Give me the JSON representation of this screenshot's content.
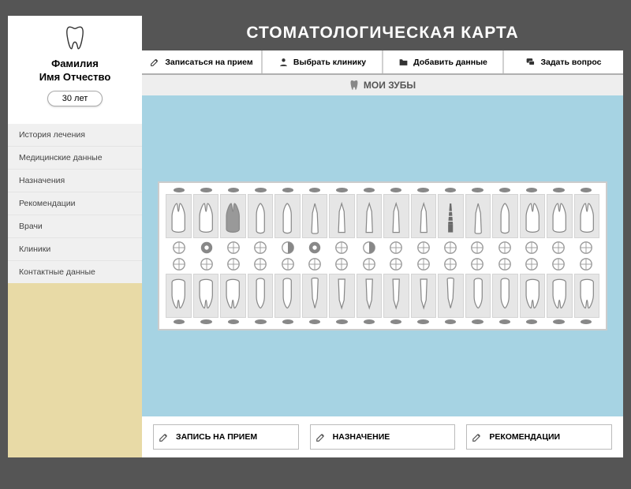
{
  "profile": {
    "name_line1": "Фамилия",
    "name_line2": "Имя Отчество",
    "age": "30 лет"
  },
  "nav": {
    "items": [
      "История лечения",
      "Медицинские данные",
      "Назначения",
      "Рекомендации",
      "Врачи",
      "Клиники",
      "Контактные данные"
    ]
  },
  "title": "СТОМАТОЛОГИЧЕСКАЯ КАРТА",
  "toolbar": {
    "items": [
      {
        "label": "Записаться на прием",
        "icon": "pencil"
      },
      {
        "label": "Выбрать клинику",
        "icon": "user"
      },
      {
        "label": "Добавить данные",
        "icon": "folder"
      },
      {
        "label": "Задать вопрос",
        "icon": "chat"
      }
    ]
  },
  "sub_header": "МОИ ЗУБЫ",
  "chart": {
    "tooth_count": 16,
    "upper_teeth": [
      {
        "type": "molar",
        "shade": "light"
      },
      {
        "type": "molar",
        "shade": "light"
      },
      {
        "type": "molar",
        "shade": "dark"
      },
      {
        "type": "premolar",
        "shade": "light"
      },
      {
        "type": "premolar",
        "shade": "light"
      },
      {
        "type": "canine",
        "shade": "light"
      },
      {
        "type": "incisor",
        "shade": "light"
      },
      {
        "type": "incisor",
        "shade": "light"
      },
      {
        "type": "incisor",
        "shade": "light"
      },
      {
        "type": "incisor",
        "shade": "light"
      },
      {
        "type": "implant",
        "shade": "dark"
      },
      {
        "type": "canine",
        "shade": "light"
      },
      {
        "type": "premolar",
        "shade": "light"
      },
      {
        "type": "molar",
        "shade": "light"
      },
      {
        "type": "molar",
        "shade": "light"
      },
      {
        "type": "molar",
        "shade": "light"
      }
    ],
    "upper_occlusal": [
      "ring",
      "filled",
      "ring",
      "ring",
      "half",
      "filled",
      "ring",
      "half",
      "ring",
      "ring",
      "ring",
      "ring",
      "ring",
      "ring",
      "ring",
      "ring"
    ],
    "lower_occlusal": [
      "ring",
      "ring",
      "ring",
      "ring",
      "ring",
      "ring",
      "ring",
      "ring",
      "ring",
      "ring",
      "ring",
      "ring",
      "ring",
      "ring",
      "ring",
      "ring"
    ],
    "lower_teeth": [
      {
        "type": "molar"
      },
      {
        "type": "molar"
      },
      {
        "type": "molar"
      },
      {
        "type": "premolar"
      },
      {
        "type": "premolar"
      },
      {
        "type": "canine"
      },
      {
        "type": "incisor"
      },
      {
        "type": "incisor"
      },
      {
        "type": "incisor"
      },
      {
        "type": "incisor"
      },
      {
        "type": "canine"
      },
      {
        "type": "premolar"
      },
      {
        "type": "premolar"
      },
      {
        "type": "molar"
      },
      {
        "type": "molar"
      },
      {
        "type": "molar"
      }
    ],
    "colors": {
      "cell_bg": "#e6e6e6",
      "tooth_outline": "#888888",
      "tooth_fill_light": "#ffffff",
      "tooth_fill_dark": "#999999",
      "implant_fill": "#6b6b6b",
      "occ_stroke": "#999999",
      "occ_fill": "#888888"
    }
  },
  "bottom_actions": {
    "items": [
      {
        "label": "ЗАПИСЬ НА ПРИЕМ",
        "icon": "pencil"
      },
      {
        "label": "НАЗНАЧЕНИЕ",
        "icon": "pencil"
      },
      {
        "label": "РЕКОМЕНДАЦИИ",
        "icon": "pencil"
      }
    ]
  }
}
